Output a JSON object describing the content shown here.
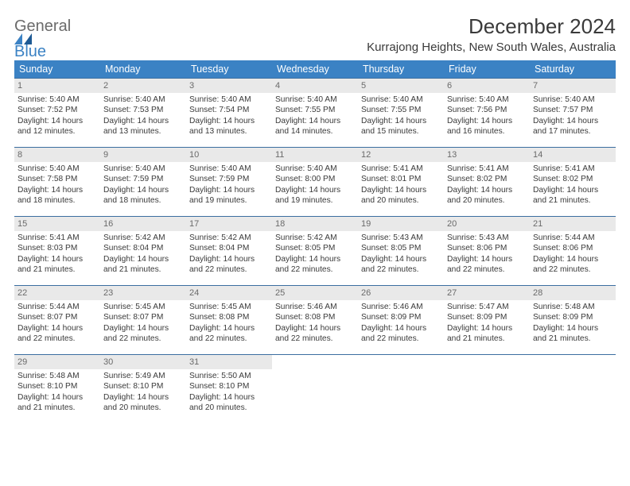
{
  "logo": {
    "word1": "General",
    "word2": "Blue"
  },
  "title": "December 2024",
  "location": "Kurrajong Heights, New South Wales, Australia",
  "colors": {
    "header_bg": "#3b82c4",
    "header_text": "#ffffff",
    "daynum_bg": "#e9e9e9",
    "daynum_text": "#6a6a6a",
    "row_border": "#3b6ea0",
    "body_text": "#3a3a3a",
    "page_bg": "#ffffff"
  },
  "font": {
    "family": "Arial",
    "header_size_pt": 9,
    "body_size_pt": 8,
    "title_size_pt": 20,
    "location_size_pt": 11
  },
  "weekdays": [
    "Sunday",
    "Monday",
    "Tuesday",
    "Wednesday",
    "Thursday",
    "Friday",
    "Saturday"
  ],
  "weeks": [
    [
      {
        "day": "1",
        "sunrise": "Sunrise: 5:40 AM",
        "sunset": "Sunset: 7:52 PM",
        "d1": "Daylight: 14 hours",
        "d2": "and 12 minutes."
      },
      {
        "day": "2",
        "sunrise": "Sunrise: 5:40 AM",
        "sunset": "Sunset: 7:53 PM",
        "d1": "Daylight: 14 hours",
        "d2": "and 13 minutes."
      },
      {
        "day": "3",
        "sunrise": "Sunrise: 5:40 AM",
        "sunset": "Sunset: 7:54 PM",
        "d1": "Daylight: 14 hours",
        "d2": "and 13 minutes."
      },
      {
        "day": "4",
        "sunrise": "Sunrise: 5:40 AM",
        "sunset": "Sunset: 7:55 PM",
        "d1": "Daylight: 14 hours",
        "d2": "and 14 minutes."
      },
      {
        "day": "5",
        "sunrise": "Sunrise: 5:40 AM",
        "sunset": "Sunset: 7:55 PM",
        "d1": "Daylight: 14 hours",
        "d2": "and 15 minutes."
      },
      {
        "day": "6",
        "sunrise": "Sunrise: 5:40 AM",
        "sunset": "Sunset: 7:56 PM",
        "d1": "Daylight: 14 hours",
        "d2": "and 16 minutes."
      },
      {
        "day": "7",
        "sunrise": "Sunrise: 5:40 AM",
        "sunset": "Sunset: 7:57 PM",
        "d1": "Daylight: 14 hours",
        "d2": "and 17 minutes."
      }
    ],
    [
      {
        "day": "8",
        "sunrise": "Sunrise: 5:40 AM",
        "sunset": "Sunset: 7:58 PM",
        "d1": "Daylight: 14 hours",
        "d2": "and 18 minutes."
      },
      {
        "day": "9",
        "sunrise": "Sunrise: 5:40 AM",
        "sunset": "Sunset: 7:59 PM",
        "d1": "Daylight: 14 hours",
        "d2": "and 18 minutes."
      },
      {
        "day": "10",
        "sunrise": "Sunrise: 5:40 AM",
        "sunset": "Sunset: 7:59 PM",
        "d1": "Daylight: 14 hours",
        "d2": "and 19 minutes."
      },
      {
        "day": "11",
        "sunrise": "Sunrise: 5:40 AM",
        "sunset": "Sunset: 8:00 PM",
        "d1": "Daylight: 14 hours",
        "d2": "and 19 minutes."
      },
      {
        "day": "12",
        "sunrise": "Sunrise: 5:41 AM",
        "sunset": "Sunset: 8:01 PM",
        "d1": "Daylight: 14 hours",
        "d2": "and 20 minutes."
      },
      {
        "day": "13",
        "sunrise": "Sunrise: 5:41 AM",
        "sunset": "Sunset: 8:02 PM",
        "d1": "Daylight: 14 hours",
        "d2": "and 20 minutes."
      },
      {
        "day": "14",
        "sunrise": "Sunrise: 5:41 AM",
        "sunset": "Sunset: 8:02 PM",
        "d1": "Daylight: 14 hours",
        "d2": "and 21 minutes."
      }
    ],
    [
      {
        "day": "15",
        "sunrise": "Sunrise: 5:41 AM",
        "sunset": "Sunset: 8:03 PM",
        "d1": "Daylight: 14 hours",
        "d2": "and 21 minutes."
      },
      {
        "day": "16",
        "sunrise": "Sunrise: 5:42 AM",
        "sunset": "Sunset: 8:04 PM",
        "d1": "Daylight: 14 hours",
        "d2": "and 21 minutes."
      },
      {
        "day": "17",
        "sunrise": "Sunrise: 5:42 AM",
        "sunset": "Sunset: 8:04 PM",
        "d1": "Daylight: 14 hours",
        "d2": "and 22 minutes."
      },
      {
        "day": "18",
        "sunrise": "Sunrise: 5:42 AM",
        "sunset": "Sunset: 8:05 PM",
        "d1": "Daylight: 14 hours",
        "d2": "and 22 minutes."
      },
      {
        "day": "19",
        "sunrise": "Sunrise: 5:43 AM",
        "sunset": "Sunset: 8:05 PM",
        "d1": "Daylight: 14 hours",
        "d2": "and 22 minutes."
      },
      {
        "day": "20",
        "sunrise": "Sunrise: 5:43 AM",
        "sunset": "Sunset: 8:06 PM",
        "d1": "Daylight: 14 hours",
        "d2": "and 22 minutes."
      },
      {
        "day": "21",
        "sunrise": "Sunrise: 5:44 AM",
        "sunset": "Sunset: 8:06 PM",
        "d1": "Daylight: 14 hours",
        "d2": "and 22 minutes."
      }
    ],
    [
      {
        "day": "22",
        "sunrise": "Sunrise: 5:44 AM",
        "sunset": "Sunset: 8:07 PM",
        "d1": "Daylight: 14 hours",
        "d2": "and 22 minutes."
      },
      {
        "day": "23",
        "sunrise": "Sunrise: 5:45 AM",
        "sunset": "Sunset: 8:07 PM",
        "d1": "Daylight: 14 hours",
        "d2": "and 22 minutes."
      },
      {
        "day": "24",
        "sunrise": "Sunrise: 5:45 AM",
        "sunset": "Sunset: 8:08 PM",
        "d1": "Daylight: 14 hours",
        "d2": "and 22 minutes."
      },
      {
        "day": "25",
        "sunrise": "Sunrise: 5:46 AM",
        "sunset": "Sunset: 8:08 PM",
        "d1": "Daylight: 14 hours",
        "d2": "and 22 minutes."
      },
      {
        "day": "26",
        "sunrise": "Sunrise: 5:46 AM",
        "sunset": "Sunset: 8:09 PM",
        "d1": "Daylight: 14 hours",
        "d2": "and 22 minutes."
      },
      {
        "day": "27",
        "sunrise": "Sunrise: 5:47 AM",
        "sunset": "Sunset: 8:09 PM",
        "d1": "Daylight: 14 hours",
        "d2": "and 21 minutes."
      },
      {
        "day": "28",
        "sunrise": "Sunrise: 5:48 AM",
        "sunset": "Sunset: 8:09 PM",
        "d1": "Daylight: 14 hours",
        "d2": "and 21 minutes."
      }
    ],
    [
      {
        "day": "29",
        "sunrise": "Sunrise: 5:48 AM",
        "sunset": "Sunset: 8:10 PM",
        "d1": "Daylight: 14 hours",
        "d2": "and 21 minutes."
      },
      {
        "day": "30",
        "sunrise": "Sunrise: 5:49 AM",
        "sunset": "Sunset: 8:10 PM",
        "d1": "Daylight: 14 hours",
        "d2": "and 20 minutes."
      },
      {
        "day": "31",
        "sunrise": "Sunrise: 5:50 AM",
        "sunset": "Sunset: 8:10 PM",
        "d1": "Daylight: 14 hours",
        "d2": "and 20 minutes."
      },
      {
        "empty": true
      },
      {
        "empty": true
      },
      {
        "empty": true
      },
      {
        "empty": true
      }
    ]
  ]
}
